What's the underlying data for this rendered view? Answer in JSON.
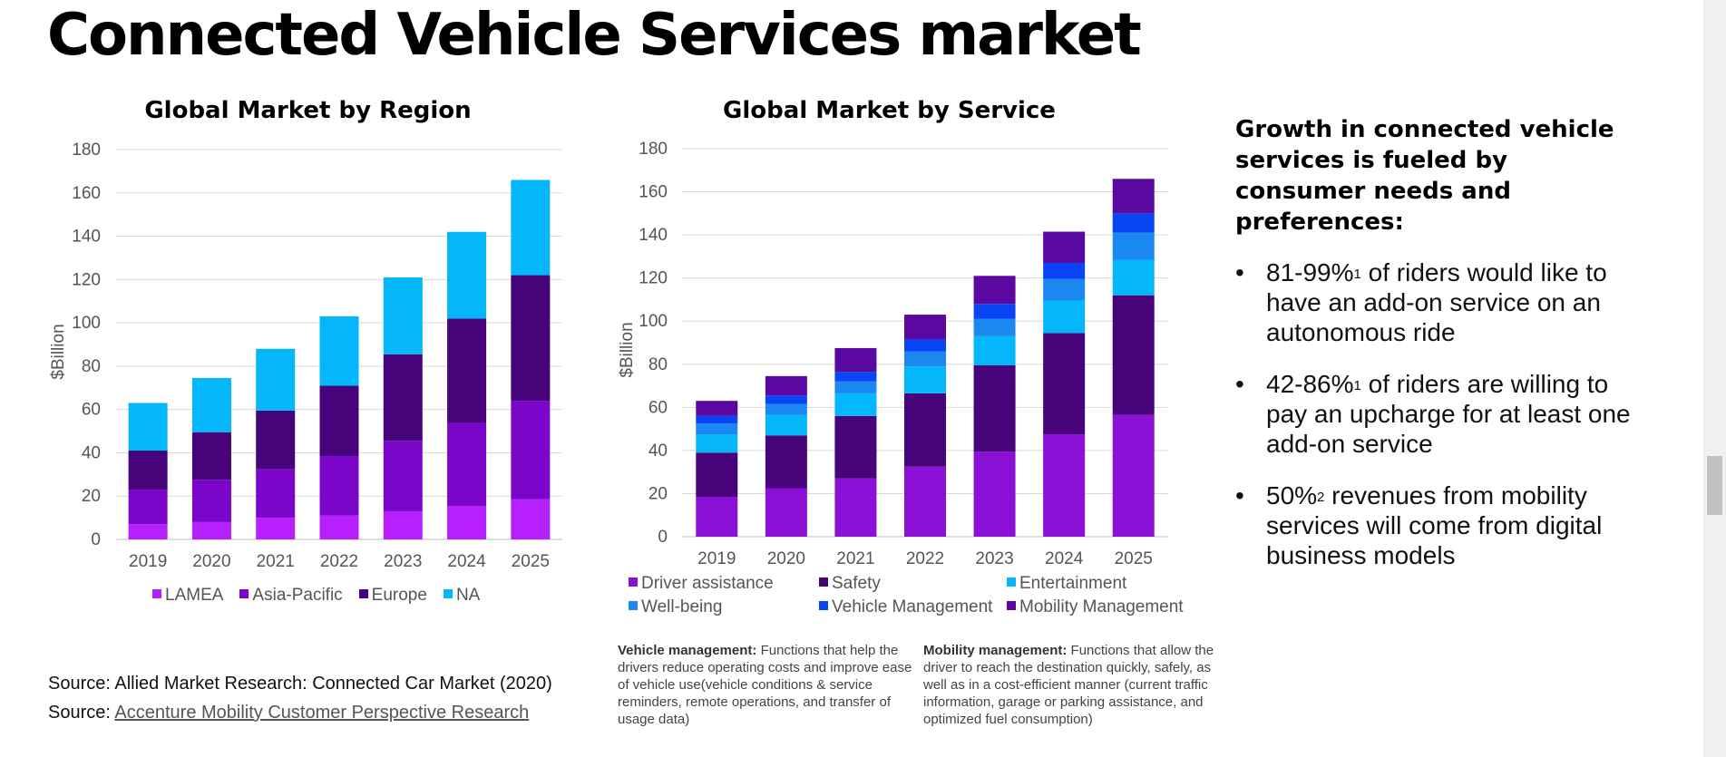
{
  "page": {
    "title": "Connected Vehicle Services market"
  },
  "chart_data": [
    {
      "type": "bar",
      "stacked": true,
      "title": "Global Market by Region",
      "ylabel": "$Billion",
      "xlabel": "",
      "ylim": [
        0,
        180
      ],
      "yticks": [
        0,
        20,
        40,
        60,
        80,
        100,
        120,
        140,
        160,
        180
      ],
      "categories": [
        "2019",
        "2020",
        "2021",
        "2022",
        "2023",
        "2024",
        "2025"
      ],
      "grid": true,
      "legend_position": "bottom",
      "series": [
        {
          "name": "LAMEA",
          "color": "#b620ff",
          "values": [
            7,
            8,
            10,
            11,
            13,
            15.5,
            18.5
          ]
        },
        {
          "name": "Asia-Pacific",
          "color": "#7b05c9",
          "values": [
            16,
            19.5,
            22.5,
            27.5,
            32.5,
            38.5,
            45.5
          ]
        },
        {
          "name": "Europe",
          "color": "#46037a",
          "values": [
            18,
            22,
            27,
            32.5,
            40,
            48,
            58
          ]
        },
        {
          "name": "NA",
          "color": "#04b7fa",
          "values": [
            22,
            25,
            28.5,
            32,
            35.5,
            40,
            44
          ]
        }
      ]
    },
    {
      "type": "bar",
      "stacked": true,
      "title": "Global Market by Service",
      "ylabel": "$Billion",
      "xlabel": "",
      "ylim": [
        0,
        180
      ],
      "yticks": [
        0,
        20,
        40,
        60,
        80,
        100,
        120,
        140,
        160,
        180
      ],
      "categories": [
        "2019",
        "2020",
        "2021",
        "2022",
        "2023",
        "2024",
        "2025"
      ],
      "grid": true,
      "legend_position": "bottom",
      "series": [
        {
          "name": "Driver assistance",
          "color": "#8a10d6",
          "values": [
            18.5,
            22.5,
            27,
            32.5,
            39.5,
            47.5,
            56.5
          ]
        },
        {
          "name": "Safety",
          "color": "#46037a",
          "values": [
            20.5,
            24.5,
            29,
            34,
            40,
            47,
            55.5
          ]
        },
        {
          "name": "Entertainment",
          "color": "#04b7fa",
          "values": [
            8.5,
            9.5,
            10.5,
            12.5,
            13.5,
            15,
            16.5
          ]
        },
        {
          "name": "Well-being",
          "color": "#1a88f0",
          "values": [
            5,
            5,
            5.5,
            7,
            8,
            10,
            12.5
          ]
        },
        {
          "name": "Vehicle Management",
          "color": "#0a45f5",
          "values": [
            3.5,
            4,
            4.5,
            5.5,
            7,
            7.5,
            9
          ]
        },
        {
          "name": "Mobility Management",
          "color": "#5a08a0",
          "values": [
            7,
            9,
            11,
            11.5,
            13,
            14.5,
            16
          ]
        }
      ]
    }
  ],
  "sidebar": {
    "heading": "Growth in connected vehicle services is fueled by consumer needs and preferences:",
    "bullet": "•",
    "bullets": [
      {
        "stat": "81-99%",
        "sup": "1",
        "text": " of riders would like to have an add-on service on an autonomous ride"
      },
      {
        "stat": "42-86%",
        "sup": "1",
        "text": " of riders are willing to pay an upcharge for at least one add-on service"
      },
      {
        "stat": "50%",
        "sup": "2",
        "text": " revenues from mobility services will come from digital business models"
      }
    ]
  },
  "notes": {
    "vehicle_title": "Vehicle management:",
    "vehicle_text": " Functions that help the drivers reduce operating costs and improve ease of vehicle use(vehicle conditions & service reminders, remote operations, and transfer of usage data)",
    "mobility_title": "Mobility management:",
    "mobility_text": " Functions that allow the driver to reach the destination quickly, safely, as well as in a cost-efficient manner (current traffic information, garage or parking assistance, and optimized fuel consumption)"
  },
  "sources": {
    "source1": "Source: Allied Market Research: Connected Car Market (2020)",
    "source2_prefix": "Source: ",
    "source2_link": "Accenture Mobility Customer Perspective Research"
  }
}
